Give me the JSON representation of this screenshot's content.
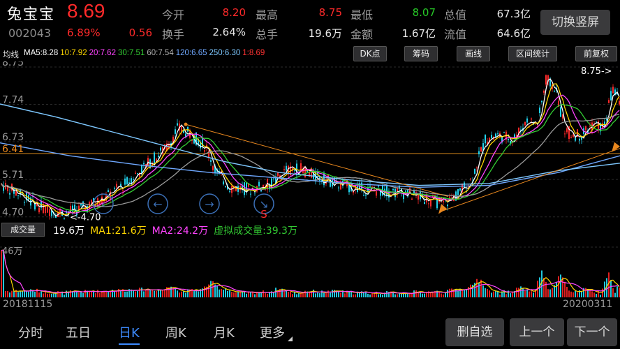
{
  "header": {
    "name": "兔宝宝",
    "code": "002043",
    "price": "8.69",
    "pct": "6.89%",
    "chg": "0.56",
    "quote": [
      {
        "label": "今开",
        "value": "8.20",
        "color": "red"
      },
      {
        "label": "最高",
        "value": "8.75",
        "color": "red"
      },
      {
        "label": "最低",
        "value": "8.07",
        "color": "green"
      },
      {
        "label": "总值",
        "value": "67.3亿",
        "color": "white"
      },
      {
        "label": "换手",
        "value": "2.64%",
        "color": "white"
      },
      {
        "label": "总手",
        "value": "19.6万",
        "color": "white"
      },
      {
        "label": "金额",
        "value": "1.67亿",
        "color": "white"
      },
      {
        "label": "流值",
        "value": "64.6亿",
        "color": "white"
      }
    ],
    "switch_label": "切换竖屏"
  },
  "ma_bar": {
    "label": "均线",
    "items": [
      {
        "text": "MA5:8.28",
        "color": "#ffffff"
      },
      {
        "text": "10:7.92",
        "color": "#ffd700"
      },
      {
        "text": "20:7.62",
        "color": "#ff44ff"
      },
      {
        "text": "30:7.51",
        "color": "#33cc33"
      },
      {
        "text": "60:7.54",
        "color": "#b0b0b0"
      },
      {
        "text": "120:6.65",
        "color": "#6fa8ff"
      },
      {
        "text": "250:6.30",
        "color": "#7ec8ff"
      },
      {
        "text": "1:8.69",
        "color": "#ff3333"
      }
    ]
  },
  "tools": [
    "DK点",
    "筹码",
    "画线",
    "区间统计",
    "前复权"
  ],
  "chart_data": {
    "type": "candlestick",
    "y_ticks": [
      "8.75",
      "7.74",
      "6.73",
      "6.41",
      "5.71",
      "4.70"
    ],
    "ylim": [
      4.6,
      8.9
    ],
    "hline": 6.41,
    "annot_high": "8.75->",
    "annot_low": "<-4.70",
    "signal_label": "S",
    "vol_max_label": "46万"
  },
  "volume_bar": {
    "button": "成交量",
    "items": [
      {
        "text": "19.6万",
        "color": "#ffffff"
      },
      {
        "text": "MA1:21.6万",
        "color": "#ffd700"
      },
      {
        "text": "MA2:24.2万",
        "color": "#ff44ff"
      },
      {
        "text": "虚拟成交量:39.3万",
        "color": "#33cc33"
      }
    ]
  },
  "dates": {
    "start": "20181115",
    "end": "20200311"
  },
  "bottom_tabs": [
    "分时",
    "五日",
    "日K",
    "周K",
    "月K",
    "更多"
  ],
  "active_tab": "日K",
  "nav_buttons": [
    "删自选",
    "上一个",
    "下一个"
  ]
}
